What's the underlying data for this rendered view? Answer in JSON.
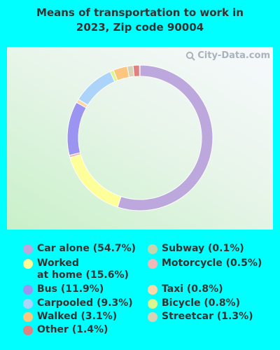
{
  "title_line1": "Means of transportation to work in",
  "title_line2": "2023, Zip code 90004",
  "watermark": "City-Data.com",
  "chart_data": {
    "type": "pie",
    "donut": true,
    "title": "Means of transportation to work in 2023, Zip code 90004",
    "legend_position": "bottom",
    "slices": [
      {
        "label": "Car alone",
        "value": 54.7,
        "display": "Car alone (54.7%)",
        "color": "#bca8dc"
      },
      {
        "label": "Worked at home",
        "value": 15.6,
        "display": "Worked at home (15.6%)",
        "line1": "Worked",
        "line2": "at home (15.6%)",
        "color": "#ffff99"
      },
      {
        "label": "Motorcycle",
        "value": 0.5,
        "display": "Motorcycle (0.5%)",
        "color": "#f0b8b8"
      },
      {
        "label": "Bus",
        "value": 11.9,
        "display": "Bus (11.9%)",
        "color": "#9b94f0"
      },
      {
        "label": "Taxi",
        "value": 0.8,
        "display": "Taxi (0.8%)",
        "color": "#fcd7a8"
      },
      {
        "label": "Carpooled",
        "value": 9.3,
        "display": "Carpooled (9.3%)",
        "color": "#acd4fa"
      },
      {
        "label": "Bicycle",
        "value": 0.8,
        "display": "Bicycle (0.8%)",
        "color": "#ddf78f"
      },
      {
        "label": "Walked",
        "value": 3.1,
        "display": "Walked (3.1%)",
        "color": "#fcc67e"
      },
      {
        "label": "Streetcar",
        "value": 1.3,
        "display": "Streetcar (1.3%)",
        "color": "#d6d3b6"
      },
      {
        "label": "Other",
        "value": 1.4,
        "display": "Other (1.4%)",
        "color": "#e08080"
      },
      {
        "label": "Subway",
        "value": 0.1,
        "display": "Subway (0.1%)",
        "color": "#c4d6ac"
      }
    ]
  }
}
